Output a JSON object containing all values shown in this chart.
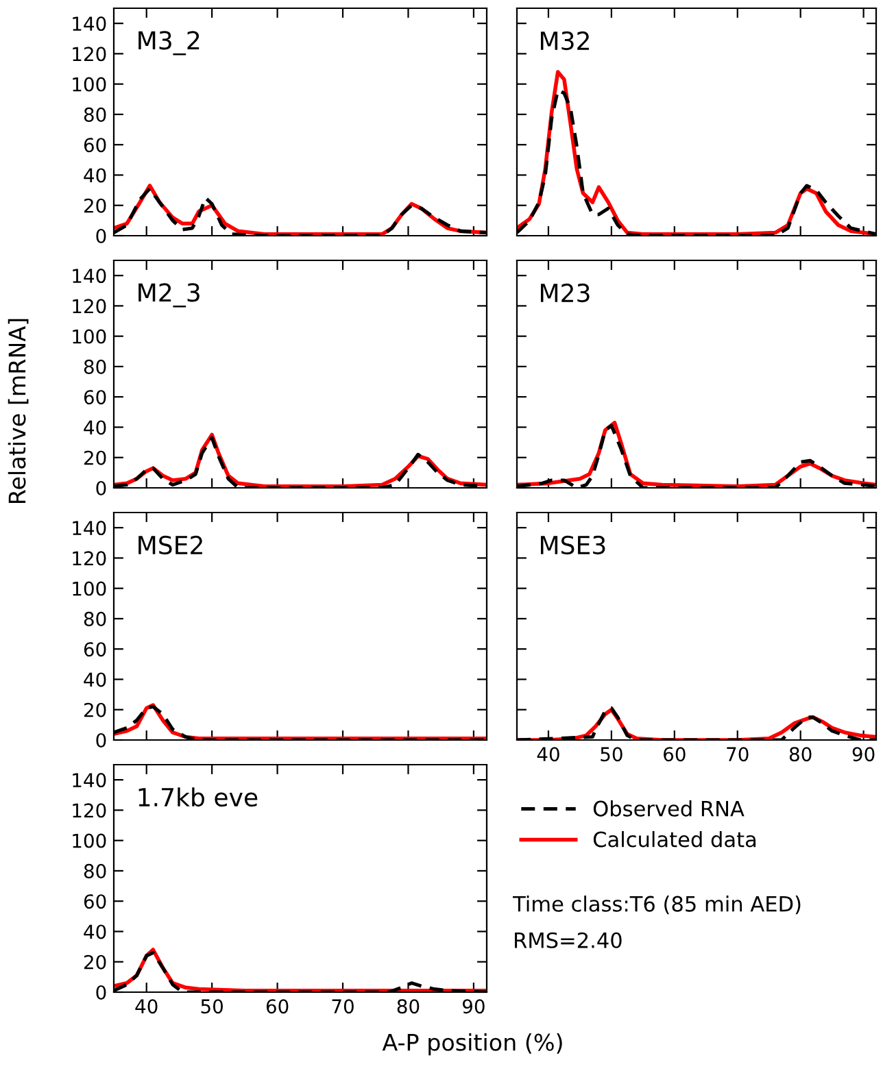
{
  "chart_data": [
    {
      "type": "line",
      "title": "M3_2",
      "xlim": [
        35,
        92
      ],
      "ylim": [
        0,
        150
      ],
      "xticks": [
        40,
        50,
        60,
        70,
        80,
        90
      ],
      "yticks": [
        0,
        20,
        40,
        60,
        80,
        100,
        120,
        140
      ],
      "tick_labels": "y",
      "grid": false,
      "legend": false,
      "series": [
        {
          "color": "#000000",
          "line_style": "dashed",
          "x": [
            35,
            37,
            39,
            40.5,
            42,
            44,
            45.5,
            47,
            48,
            49,
            50,
            51.5,
            53,
            58,
            76,
            77.5,
            79,
            80.5,
            82,
            84,
            86,
            88,
            92
          ],
          "values": [
            2,
            7,
            24,
            31,
            22,
            10,
            4,
            5,
            13,
            25,
            21,
            7,
            1,
            0,
            0,
            5,
            14,
            20,
            18,
            12,
            7,
            3,
            2
          ]
        },
        {
          "color": "#ff0000",
          "line_style": "solid",
          "x": [
            35,
            37,
            39,
            40.5,
            42,
            44,
            45.5,
            47,
            48,
            50,
            52,
            54,
            58,
            70,
            76,
            77.5,
            79,
            80.5,
            82,
            84,
            86,
            88,
            92
          ],
          "values": [
            5,
            8,
            22,
            33,
            22,
            12,
            8,
            8,
            16,
            20,
            8,
            3,
            1,
            1,
            1,
            5,
            14,
            21,
            18,
            11,
            5,
            3,
            2
          ]
        }
      ]
    },
    {
      "type": "line",
      "title": "M32",
      "xlim": [
        35,
        92
      ],
      "ylim": [
        0,
        150
      ],
      "xticks": [
        40,
        50,
        60,
        70,
        80,
        90
      ],
      "yticks": [
        0,
        20,
        40,
        60,
        80,
        100,
        120,
        140
      ],
      "tick_labels": false,
      "grid": false,
      "legend": false,
      "series": [
        {
          "color": "#000000",
          "line_style": "dashed",
          "x": [
            35,
            37,
            38.5,
            39.5,
            40.5,
            41.5,
            42.5,
            43.5,
            44.5,
            45.5,
            47,
            48,
            49.5,
            51,
            52.5,
            55,
            70,
            76,
            78,
            80,
            81,
            82.5,
            84,
            86,
            88,
            92
          ],
          "values": [
            2,
            10,
            22,
            40,
            77,
            96,
            94,
            84,
            59,
            28,
            14,
            14,
            18,
            7,
            1,
            0,
            0,
            0,
            5,
            28,
            33,
            30,
            22,
            13,
            5,
            1
          ]
        },
        {
          "color": "#ff0000",
          "line_style": "solid",
          "x": [
            35,
            37,
            38.5,
            39.5,
            40.5,
            41.5,
            42.5,
            43.5,
            44.5,
            45.5,
            47,
            48,
            49.5,
            51,
            52.5,
            55,
            70,
            76,
            78,
            80,
            81,
            82.5,
            84,
            86,
            88,
            92
          ],
          "values": [
            5,
            11,
            21,
            44,
            81,
            108,
            103,
            74,
            44,
            28,
            22,
            32,
            22,
            10,
            2,
            1,
            1,
            2,
            7,
            28,
            31,
            28,
            16,
            7,
            3,
            1
          ]
        }
      ]
    },
    {
      "type": "line",
      "title": "M2_3",
      "ylabel": "Relative [mRNA]",
      "xlim": [
        35,
        92
      ],
      "ylim": [
        0,
        150
      ],
      "xticks": [
        40,
        50,
        60,
        70,
        80,
        90
      ],
      "yticks": [
        0,
        20,
        40,
        60,
        80,
        100,
        120,
        140
      ],
      "tick_labels": "y",
      "grid": false,
      "legend": false,
      "series": [
        {
          "color": "#000000",
          "line_style": "dashed",
          "x": [
            35,
            37,
            38.5,
            40,
            41,
            42.5,
            44,
            46,
            47.5,
            48.5,
            50,
            51,
            52.5,
            54,
            58,
            70,
            76,
            78,
            80,
            81.5,
            83,
            84.5,
            86,
            88,
            92
          ],
          "values": [
            1,
            2,
            6,
            12,
            13,
            6,
            2,
            5,
            9,
            23,
            33,
            21,
            6,
            0,
            0,
            0,
            0,
            2,
            13,
            22,
            17,
            10,
            5,
            2,
            1
          ]
        },
        {
          "color": "#ff0000",
          "line_style": "solid",
          "x": [
            35,
            37,
            38.5,
            40,
            41,
            42.5,
            44,
            46,
            47.5,
            48.5,
            50,
            51,
            52.5,
            54,
            58,
            70,
            76,
            78,
            80,
            81.5,
            83,
            84.5,
            86,
            88,
            92
          ],
          "values": [
            2,
            3,
            6,
            11,
            13,
            8,
            5,
            6,
            10,
            25,
            35,
            23,
            8,
            3,
            1,
            1,
            2,
            6,
            14,
            21,
            19,
            12,
            6,
            3,
            2
          ]
        }
      ]
    },
    {
      "type": "line",
      "title": "M23",
      "xlim": [
        35,
        92
      ],
      "ylim": [
        0,
        150
      ],
      "xticks": [
        40,
        50,
        60,
        70,
        80,
        90
      ],
      "yticks": [
        0,
        20,
        40,
        60,
        80,
        100,
        120,
        140
      ],
      "tick_labels": false,
      "grid": false,
      "legend": false,
      "series": [
        {
          "color": "#000000",
          "line_style": "dashed",
          "x": [
            35,
            39,
            40.5,
            42.5,
            44.5,
            46,
            47,
            48,
            49,
            50,
            51.5,
            53,
            55,
            70,
            76,
            78,
            80,
            81.5,
            83,
            85,
            87,
            90,
            92
          ],
          "values": [
            1,
            3,
            5,
            5,
            0,
            2,
            8,
            22,
            38,
            41,
            26,
            8,
            0,
            0,
            0,
            8,
            17,
            18,
            14,
            8,
            3,
            2,
            1
          ]
        },
        {
          "color": "#ff0000",
          "line_style": "solid",
          "x": [
            35,
            40,
            45,
            46.5,
            48,
            49,
            50.5,
            51.5,
            53,
            55,
            58,
            70,
            76,
            78,
            80,
            81.5,
            83,
            85,
            87,
            90,
            92
          ],
          "values": [
            2,
            3,
            6,
            9,
            23,
            38,
            43,
            30,
            9,
            3,
            2,
            1,
            2,
            8,
            14,
            16,
            13,
            8,
            5,
            3,
            2
          ]
        }
      ]
    },
    {
      "type": "line",
      "title": "MSE2",
      "xlim": [
        35,
        92
      ],
      "ylim": [
        0,
        150
      ],
      "xticks": [
        40,
        50,
        60,
        70,
        80,
        90
      ],
      "yticks": [
        0,
        20,
        40,
        60,
        80,
        100,
        120,
        140
      ],
      "tick_labels": "y",
      "grid": false,
      "legend": false,
      "series": [
        {
          "color": "#000000",
          "line_style": "dashed",
          "x": [
            35,
            37,
            38.5,
            40,
            41,
            42.5,
            44,
            46,
            48,
            92
          ],
          "values": [
            5,
            8,
            13,
            21,
            22,
            17,
            7,
            2,
            0,
            0
          ]
        },
        {
          "color": "#ff0000",
          "line_style": "solid",
          "x": [
            35,
            37,
            38.5,
            40,
            41,
            42.5,
            44,
            46,
            48,
            55,
            92
          ],
          "values": [
            4,
            6,
            9,
            21,
            23,
            13,
            5,
            2,
            1,
            1,
            1
          ]
        }
      ]
    },
    {
      "type": "line",
      "title": "MSE3",
      "xlim": [
        35,
        92
      ],
      "ylim": [
        0,
        150
      ],
      "xticks": [
        40,
        50,
        60,
        70,
        80,
        90
      ],
      "yticks": [
        0,
        20,
        40,
        60,
        80,
        100,
        120,
        140
      ],
      "tick_labels": "x",
      "grid": false,
      "legend": false,
      "series": [
        {
          "color": "#000000",
          "line_style": "dashed",
          "x": [
            35,
            47,
            47.5,
            49,
            50,
            51,
            52.5,
            54,
            75,
            77,
            79,
            81,
            82,
            83.5,
            85,
            87,
            89.5,
            92
          ],
          "values": [
            0,
            2,
            7,
            19,
            21,
            15,
            3,
            0,
            0,
            0,
            8,
            15,
            15,
            11,
            6,
            3,
            0,
            0
          ]
        },
        {
          "color": "#ff0000",
          "line_style": "solid",
          "x": [
            35,
            40,
            44,
            46,
            47.5,
            49,
            50,
            51,
            52.5,
            54,
            58,
            70,
            75,
            77,
            79,
            81,
            82,
            83.5,
            85,
            87,
            89.5,
            92
          ],
          "values": [
            0,
            0,
            1,
            3,
            9,
            17,
            20,
            14,
            4,
            1,
            0,
            0,
            1,
            5,
            11,
            14,
            15,
            12,
            8,
            5,
            3,
            2
          ]
        }
      ]
    },
    {
      "type": "line",
      "title": "1.7kb eve",
      "xlabel": "A-P position (%)",
      "xlim": [
        35,
        92
      ],
      "ylim": [
        0,
        150
      ],
      "xticks": [
        40,
        50,
        60,
        70,
        80,
        90
      ],
      "yticks": [
        0,
        20,
        40,
        60,
        80,
        100,
        120,
        140
      ],
      "grid": false,
      "legend": "right",
      "annotations": [
        "Time class:T6 (85 min AED)",
        "RMS=2.40"
      ],
      "series": [
        {
          "name": "Observed RNA",
          "color": "#000000",
          "line_style": "dashed",
          "x": [
            35,
            37,
            38.5,
            40,
            41,
            42.5,
            44,
            45.5,
            48,
            70,
            77,
            79,
            80.5,
            82,
            84,
            86,
            92
          ],
          "values": [
            1,
            5,
            11,
            24,
            26,
            16,
            5,
            0,
            0,
            0,
            0,
            3,
            6,
            4,
            2,
            1,
            0
          ]
        },
        {
          "name": "Calculated data",
          "color": "#ff0000",
          "line_style": "solid",
          "x": [
            35,
            37,
            38.5,
            40,
            41,
            42.5,
            44,
            46,
            48,
            55,
            70,
            80,
            92
          ],
          "values": [
            4,
            6,
            11,
            24,
            28,
            16,
            6,
            3,
            2,
            1,
            1,
            1,
            1
          ]
        }
      ]
    }
  ]
}
